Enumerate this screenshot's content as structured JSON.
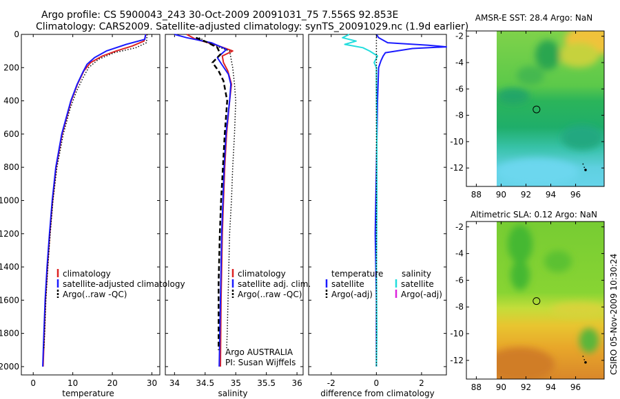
{
  "header": {
    "line1": "Argo profile: CS 5900043_243 30-Oct-2009 20091031_75 7.556S 92.853E",
    "line2": "Climatology: CARS2009. Satellite-adjusted climatology: synTS_20091029.nc (1.9d earlier)"
  },
  "side_note": "CSIRO 05-Nov-2009 10:30:24",
  "colors": {
    "red": "#dd2222",
    "blue": "#1a1aff",
    "cyan": "#22dddd",
    "magenta": "#dd22dd",
    "black": "#000000"
  },
  "chart_data": [
    {
      "type": "line",
      "name": "temperature-profile",
      "xlabel": "temperature",
      "ylabel": "",
      "xlim": [
        -3,
        32
      ],
      "ylim": [
        2050,
        0
      ],
      "xticks": [
        "0",
        "10",
        "20",
        "30"
      ],
      "xtick_values": [
        0,
        10,
        20,
        30
      ],
      "yticks": [
        "0",
        "200",
        "400",
        "600",
        "800",
        "1000",
        "1200",
        "1400",
        "1600",
        "1800",
        "2000"
      ],
      "ytick_values": [
        0,
        200,
        400,
        600,
        800,
        1000,
        1200,
        1400,
        1600,
        1800,
        2000
      ],
      "legend": [
        {
          "label": "climatology",
          "color": "#dd2222"
        },
        {
          "label": "satellite-adjusted climatology",
          "color": "#1a1aff"
        },
        {
          "label": "Argo(..raw -QC)",
          "color": "#000000"
        }
      ],
      "series": [
        {
          "name": "climatology",
          "color": "#dd2222",
          "style": "solid",
          "depth": [
            0,
            40,
            70,
            100,
            130,
            170,
            220,
            300,
            400,
            600,
            800,
            1000,
            1200,
            1400,
            1600,
            1800,
            2000
          ],
          "values": [
            28.5,
            28.0,
            25.0,
            21.0,
            17.5,
            14.5,
            12.8,
            11.2,
            9.6,
            7.3,
            5.8,
            4.9,
            4.2,
            3.6,
            3.1,
            2.8,
            2.5
          ]
        },
        {
          "name": "satellite-adjusted climatology",
          "color": "#1a1aff",
          "style": "solid",
          "depth": [
            0,
            30,
            60,
            100,
            140,
            180,
            230,
            300,
            400,
            600,
            800,
            1000,
            1200,
            1400,
            1600,
            1800,
            2000
          ],
          "values": [
            28.4,
            28.2,
            23.5,
            18.5,
            15.5,
            13.6,
            12.5,
            11.1,
            9.5,
            7.2,
            5.7,
            4.8,
            4.1,
            3.5,
            3.0,
            2.7,
            2.4
          ]
        },
        {
          "name": "Argo(..raw -QC)",
          "color": "#000000",
          "style": "dotted",
          "depth": [
            0,
            50,
            80,
            110,
            150,
            200,
            260,
            350,
            450,
            600,
            800,
            1000,
            1200,
            1400,
            1600,
            1800,
            1900
          ],
          "values": [
            28.8,
            28.6,
            26.0,
            20.5,
            16.5,
            14.0,
            12.6,
            10.8,
            9.3,
            7.6,
            6.0,
            5.0,
            4.3,
            3.7,
            3.2,
            2.9,
            2.7
          ]
        }
      ]
    },
    {
      "type": "line",
      "name": "salinity-profile",
      "xlabel": "salinity",
      "xlim": [
        33.85,
        36.1
      ],
      "ylim": [
        2050,
        0
      ],
      "xticks": [
        "34",
        "34.5",
        "35",
        "35.5",
        "36"
      ],
      "xtick_values": [
        34,
        34.5,
        35,
        35.5,
        36
      ],
      "legend": [
        {
          "label": "climatology",
          "color": "#dd2222"
        },
        {
          "label": "satellite adj. clim.",
          "color": "#1a1aff"
        },
        {
          "label": "Argo(..raw -QC)",
          "color": "#000000"
        }
      ],
      "annotation": [
        "Argo AUSTRALIA",
        "PI: Susan Wijffels"
      ],
      "series": [
        {
          "name": "climatology",
          "color": "#dd2222",
          "style": "solid",
          "depth": [
            0,
            30,
            60,
            100,
            130,
            170,
            220,
            300,
            400,
            600,
            800,
            1000,
            1200,
            1600,
            2000
          ],
          "values": [
            34.2,
            34.35,
            34.65,
            34.95,
            34.78,
            34.8,
            34.87,
            34.93,
            34.9,
            34.85,
            34.82,
            34.8,
            34.78,
            34.76,
            34.75
          ]
        },
        {
          "name": "satellite adj. clim.",
          "color": "#1a1aff",
          "style": "solid",
          "depth": [
            0,
            20,
            50,
            90,
            140,
            180,
            240,
            300,
            400,
            600,
            800,
            1000,
            1200,
            1600,
            2000
          ],
          "values": [
            34.0,
            34.2,
            34.6,
            34.85,
            34.7,
            34.77,
            34.88,
            34.92,
            34.9,
            34.84,
            34.81,
            34.79,
            34.77,
            34.75,
            34.73
          ]
        },
        {
          "name": "Argo(..raw -QC)",
          "color": "#000000",
          "style": "dashed",
          "depth": [
            20,
            50,
            80,
            120,
            170,
            220,
            280,
            400,
            600,
            800,
            1000,
            1200,
            1500,
            1800,
            1900
          ],
          "values": [
            34.35,
            34.55,
            34.7,
            34.75,
            34.62,
            34.72,
            34.8,
            34.86,
            34.82,
            34.79,
            34.76,
            34.74,
            34.72,
            34.72,
            34.72
          ]
        },
        {
          "name": "Argo(..raw)",
          "color": "#000000",
          "style": "dotted",
          "depth": [
            20,
            60,
            100,
            200,
            300,
            400,
            600,
            800,
            1000,
            1200,
            1500,
            1800,
            1900
          ],
          "values": [
            34.4,
            34.6,
            34.9,
            34.95,
            34.98,
            35.0,
            34.98,
            34.95,
            34.93,
            34.9,
            34.88,
            34.86,
            34.85
          ]
        }
      ]
    },
    {
      "type": "line",
      "name": "difference-profile",
      "xlabel": "difference from climatology",
      "xlim": [
        -3,
        3.1
      ],
      "ylim": [
        2050,
        0
      ],
      "xticks": [
        "-2",
        "0",
        "2"
      ],
      "xtick_values": [
        -2,
        0,
        2
      ],
      "legend_headers": [
        "temperature",
        "salinity"
      ],
      "legend": [
        {
          "label": "satellite",
          "color": "#1a1aff"
        },
        {
          "label": "Argo(-adj)",
          "color": "#000000"
        },
        {
          "label": "satellite",
          "color": "#22dddd"
        },
        {
          "label": "Argo(-adj)",
          "color": "#dd22dd"
        }
      ],
      "series": [
        {
          "name": "temperature satellite",
          "color": "#1a1aff",
          "style": "solid",
          "depth": [
            0,
            20,
            50,
            65,
            75,
            85,
            110,
            130,
            160,
            200,
            400,
            800,
            1200,
            1600,
            2000
          ],
          "values": [
            0,
            0.1,
            0.5,
            2.3,
            3.1,
            1.6,
            0.4,
            0.3,
            0.2,
            0.1,
            0.05,
            0.0,
            -0.05,
            0.0,
            0.0
          ]
        },
        {
          "name": "salinity satellite",
          "color": "#22dddd",
          "style": "solid",
          "depth": [
            0,
            20,
            40,
            60,
            80,
            100,
            130,
            170,
            200,
            300,
            600,
            1000,
            1400,
            1800,
            2000
          ],
          "values": [
            -1.2,
            -1.5,
            -0.9,
            -1.4,
            -0.6,
            -0.3,
            0.05,
            -0.1,
            0.0,
            0.0,
            0.02,
            0.02,
            0.0,
            0.02,
            0.0
          ]
        },
        {
          "name": "zero line",
          "color": "#000000",
          "style": "dotted",
          "depth": [
            0,
            2000
          ],
          "values": [
            0,
            0
          ]
        }
      ]
    },
    {
      "type": "heatmap",
      "name": "sst-map",
      "title": "AMSR-E SST: 28.4 Argo: NaN",
      "xlim": [
        87.2,
        98.3
      ],
      "ylim": [
        -13.4,
        -1.6
      ],
      "xticks": [
        "88",
        "90",
        "92",
        "94",
        "96"
      ],
      "xtick_values": [
        88,
        90,
        92,
        94,
        96
      ],
      "yticks": [
        "-2",
        "-4",
        "-6",
        "-8",
        "-10",
        "-12"
      ],
      "ytick_values": [
        -2,
        -4,
        -6,
        -8,
        -10,
        -12
      ],
      "data_lon_range": [
        90,
        98.3
      ],
      "profile_marker": {
        "lon": 92.85,
        "lat": -7.556
      },
      "track": {
        "lon": [
          96.6,
          96.7,
          96.8
        ],
        "lat": [
          -11.7,
          -11.95,
          -12.15
        ]
      }
    },
    {
      "type": "heatmap",
      "name": "sla-map",
      "title": "Altimetric SLA: 0.12 Argo: NaN",
      "xlim": [
        87.2,
        98.3
      ],
      "ylim": [
        -13.4,
        -1.6
      ],
      "xticks": [
        "88",
        "90",
        "92",
        "94",
        "96"
      ],
      "xtick_values": [
        88,
        90,
        92,
        94,
        96
      ],
      "yticks": [
        "-2",
        "-4",
        "-6",
        "-8",
        "-10",
        "-12"
      ],
      "ytick_values": [
        -2,
        -4,
        -6,
        -8,
        -10,
        -12
      ],
      "data_lon_range": [
        90,
        98.3
      ],
      "profile_marker": {
        "lon": 92.85,
        "lat": -7.556
      },
      "track": {
        "lon": [
          96.6,
          96.7,
          96.8
        ],
        "lat": [
          -11.7,
          -11.95,
          -12.15
        ]
      }
    }
  ]
}
